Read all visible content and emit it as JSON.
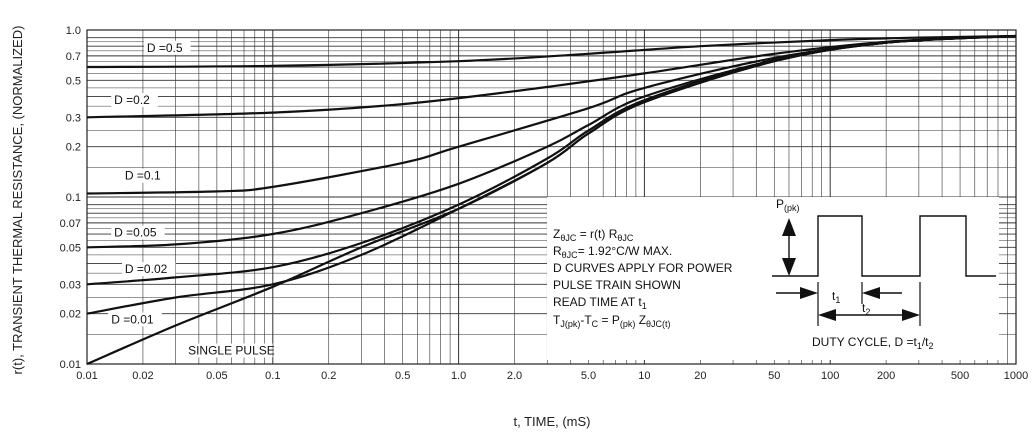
{
  "chart_data": {
    "type": "line",
    "title": "",
    "xlabel": "t, TIME, (mS)",
    "ylabel": "r(t), TRANSIENT THERMAL RESISTANCE, (NORMALIZED)",
    "x_scale": "log",
    "y_scale": "log",
    "xlim": [
      0.01,
      1000
    ],
    "ylim": [
      0.01,
      1.0
    ],
    "grid": true,
    "x_ticks": [
      {
        "v": 0.01,
        "label": "0.01"
      },
      {
        "v": 0.02,
        "label": "0.02"
      },
      {
        "v": 0.05,
        "label": "0.05"
      },
      {
        "v": 0.1,
        "label": "0.1"
      },
      {
        "v": 0.2,
        "label": "0.2"
      },
      {
        "v": 0.5,
        "label": "0.5"
      },
      {
        "v": 1.0,
        "label": "1.0"
      },
      {
        "v": 2.0,
        "label": "2.0"
      },
      {
        "v": 5.0,
        "label": "5.0"
      },
      {
        "v": 10,
        "label": "10"
      },
      {
        "v": 20,
        "label": "20"
      },
      {
        "v": 50,
        "label": "50"
      },
      {
        "v": 100,
        "label": "100"
      },
      {
        "v": 200,
        "label": "200"
      },
      {
        "v": 500,
        "label": "500"
      },
      {
        "v": 1000,
        "label": "1000"
      }
    ],
    "y_ticks": [
      {
        "v": 0.01,
        "label": "0.01"
      },
      {
        "v": 0.02,
        "label": "0.02"
      },
      {
        "v": 0.03,
        "label": "0.03"
      },
      {
        "v": 0.05,
        "label": "0.05"
      },
      {
        "v": 0.07,
        "label": "0.07"
      },
      {
        "v": 0.1,
        "label": "0.1"
      },
      {
        "v": 0.2,
        "label": "0.2"
      },
      {
        "v": 0.3,
        "label": "0.3"
      },
      {
        "v": 0.5,
        "label": "0.5"
      },
      {
        "v": 0.7,
        "label": "0.7"
      },
      {
        "v": 1.0,
        "label": "1.0"
      }
    ],
    "series": [
      {
        "name": "D =0.5",
        "label_at": [
          0.021,
          0.74
        ],
        "points": [
          [
            0.01,
            0.6
          ],
          [
            0.1,
            0.61
          ],
          [
            1,
            0.65
          ],
          [
            5,
            0.72
          ],
          [
            20,
            0.8
          ],
          [
            100,
            0.87
          ],
          [
            300,
            0.9
          ],
          [
            1000,
            0.92
          ]
        ]
      },
      {
        "name": "D =0.2",
        "label_at": [
          0.014,
          0.36
        ],
        "points": [
          [
            0.01,
            0.3
          ],
          [
            0.1,
            0.32
          ],
          [
            0.5,
            0.36
          ],
          [
            2,
            0.43
          ],
          [
            10,
            0.55
          ],
          [
            50,
            0.72
          ],
          [
            200,
            0.85
          ],
          [
            1000,
            0.92
          ]
        ]
      },
      {
        "name": "D =0.1",
        "label_at": [
          0.016,
          0.127
        ],
        "points": [
          [
            0.01,
            0.105
          ],
          [
            0.05,
            0.108
          ],
          [
            0.1,
            0.115
          ],
          [
            0.5,
            0.16
          ],
          [
            1,
            0.2
          ],
          [
            5,
            0.34
          ],
          [
            10,
            0.45
          ],
          [
            50,
            0.68
          ],
          [
            200,
            0.84
          ],
          [
            1000,
            0.92
          ]
        ]
      },
      {
        "name": "D =0.05",
        "label_at": [
          0.014,
          0.058
        ],
        "points": [
          [
            0.01,
            0.05
          ],
          [
            0.03,
            0.052
          ],
          [
            0.1,
            0.06
          ],
          [
            0.3,
            0.08
          ],
          [
            1,
            0.12
          ],
          [
            3,
            0.2
          ],
          [
            5,
            0.27
          ],
          [
            10,
            0.4
          ],
          [
            50,
            0.66
          ],
          [
            200,
            0.84
          ],
          [
            1000,
            0.92
          ]
        ]
      },
      {
        "name": "D =0.02",
        "label_at": [
          0.016,
          0.035
        ],
        "points": [
          [
            0.01,
            0.03
          ],
          [
            0.03,
            0.033
          ],
          [
            0.1,
            0.038
          ],
          [
            0.3,
            0.053
          ],
          [
            1,
            0.09
          ],
          [
            3,
            0.17
          ],
          [
            5,
            0.25
          ],
          [
            10,
            0.38
          ],
          [
            50,
            0.66
          ],
          [
            200,
            0.84
          ],
          [
            1000,
            0.92
          ]
        ]
      },
      {
        "name": "D =0.01",
        "label_at": [
          0.0135,
          0.0175
        ],
        "points": [
          [
            0.01,
            0.02
          ],
          [
            0.03,
            0.025
          ],
          [
            0.1,
            0.03
          ],
          [
            0.3,
            0.045
          ],
          [
            1,
            0.085
          ],
          [
            3,
            0.16
          ],
          [
            5,
            0.24
          ],
          [
            10,
            0.37
          ],
          [
            50,
            0.65
          ],
          [
            200,
            0.84
          ],
          [
            1000,
            0.92
          ]
        ]
      },
      {
        "name": "SINGLE PULSE",
        "label_at": [
          0.035,
          0.0114
        ],
        "points": [
          [
            0.01,
            0.01
          ],
          [
            0.03,
            0.017
          ],
          [
            0.1,
            0.029
          ],
          [
            0.3,
            0.05
          ],
          [
            1,
            0.085
          ],
          [
            3,
            0.16
          ],
          [
            5,
            0.24
          ],
          [
            10,
            0.37
          ],
          [
            50,
            0.65
          ],
          [
            200,
            0.84
          ],
          [
            1000,
            0.92
          ]
        ]
      }
    ],
    "notes": {
      "line1": {
        "a": "Z",
        "b": "θJC",
        "c": " = r(t) R",
        "d": "θJC"
      },
      "line2": {
        "a": "R",
        "b": "θJC",
        "c": "= 1.92°C/W MAX."
      },
      "line3": "D CURVES APPLY FOR POWER",
      "line4": "PULSE TRAIN SHOWN",
      "line5": {
        "a": "READ TIME AT t",
        "b": "1"
      },
      "line6": {
        "a": "T",
        "b": "J(pk)",
        "c": "-T",
        "d": "C",
        "e": " = P",
        "f": "(pk)",
        "g": " Z",
        "h": "θJC(t)"
      }
    },
    "inset": {
      "ppk": {
        "a": "P",
        "b": "(pk)"
      },
      "t1": {
        "a": "t",
        "b": "1"
      },
      "t2": {
        "a": "t",
        "b": "2"
      },
      "duty": {
        "a": "DUTY CYCLE, D =t",
        "b": "1",
        "c": "/t",
        "d": "2"
      }
    }
  }
}
